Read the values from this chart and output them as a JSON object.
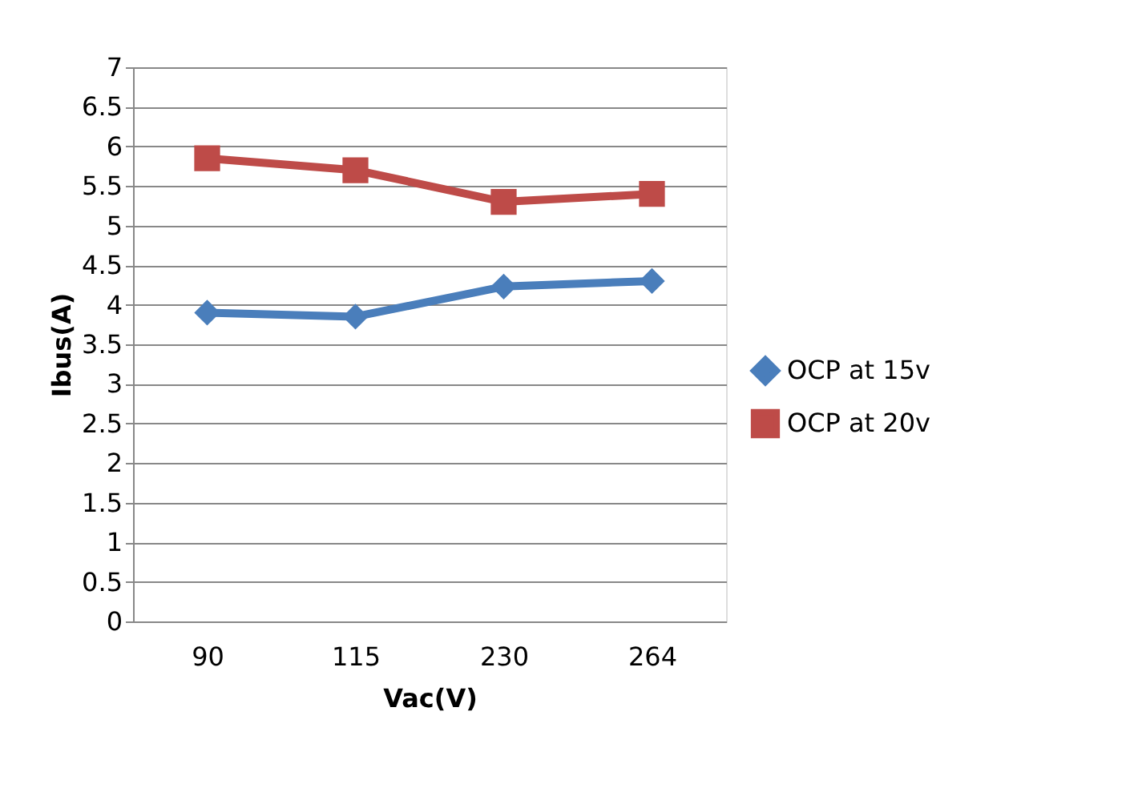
{
  "chart_data": {
    "type": "line",
    "xlabel": "Vac(V)",
    "ylabel": "Ibus(A)",
    "categories": [
      "90",
      "115",
      "230",
      "264"
    ],
    "series": [
      {
        "name": "OCP at 15v",
        "color": "#4a7ebb",
        "values": [
          3.9,
          3.85,
          4.23,
          4.3
        ],
        "marker": "diamond"
      },
      {
        "name": "OCP at 20v",
        "color": "#be4b48",
        "values": [
          5.85,
          5.7,
          5.3,
          5.4
        ],
        "marker": "square"
      }
    ],
    "ylim": [
      0,
      7
    ],
    "yticks": [
      0,
      0.5,
      1,
      1.5,
      2,
      2.5,
      3,
      3.5,
      4,
      4.5,
      5,
      5.5,
      6,
      6.5,
      7
    ],
    "grid": "y",
    "legend": "right"
  }
}
